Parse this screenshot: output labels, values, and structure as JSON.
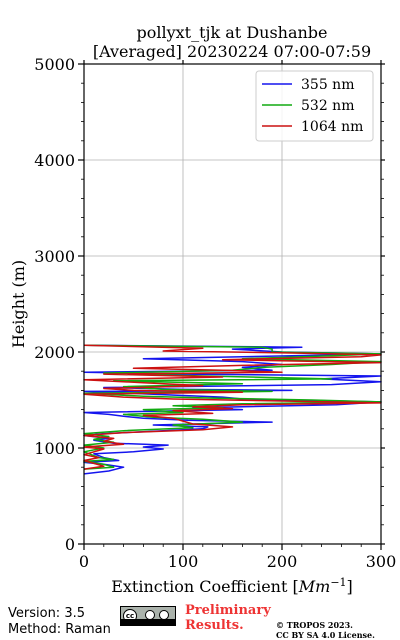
{
  "chart_data": {
    "type": "line",
    "title_line1": "pollyxt_tjk at Dushanbe",
    "title_line2": "[Averaged] 20230224 07:00-07:59",
    "xlabel": "Extinction Coefficient [",
    "xlabel_unit": "Mm",
    "xlabel_exp": "−1",
    "xlabel_end": "]",
    "ylabel": "Height (m)",
    "xlim": [
      0,
      300
    ],
    "ylim": [
      0,
      5000
    ],
    "xticks": [
      "0",
      "100",
      "200",
      "300"
    ],
    "yticks": [
      "0",
      "1000",
      "2000",
      "3000",
      "4000",
      "5000"
    ],
    "xtick_values": [
      0,
      100,
      200,
      300
    ],
    "ytick_values": [
      0,
      1000,
      2000,
      3000,
      4000,
      5000
    ],
    "grid": true,
    "legend_position": "top-right",
    "series": [
      {
        "name": "355 nm",
        "color": "#1515ee",
        "points": [
          [
            0,
            730
          ],
          [
            25,
            760
          ],
          [
            40,
            800
          ],
          [
            20,
            830
          ],
          [
            0,
            850
          ],
          [
            35,
            870
          ],
          [
            20,
            900
          ],
          [
            10,
            940
          ],
          [
            50,
            960
          ],
          [
            80,
            990
          ],
          [
            60,
            1010
          ],
          [
            85,
            1030
          ],
          [
            30,
            1050
          ],
          [
            10,
            1080
          ],
          [
            25,
            1100
          ],
          [
            0,
            1130
          ],
          [
            20,
            1150
          ],
          [
            60,
            1170
          ],
          [
            120,
            1200
          ],
          [
            125,
            1220
          ],
          [
            70,
            1240
          ],
          [
            190,
            1270
          ],
          [
            105,
            1290
          ],
          [
            60,
            1310
          ],
          [
            40,
            1330
          ],
          [
            25,
            1350
          ],
          [
            0,
            1370
          ],
          [
            160,
            1400
          ],
          [
            110,
            1420
          ],
          [
            255,
            1450
          ],
          [
            300,
            1480
          ],
          [
            160,
            1510
          ],
          [
            140,
            1530
          ],
          [
            70,
            1560
          ],
          [
            0,
            1590
          ],
          [
            210,
            1600
          ],
          [
            100,
            1610
          ],
          [
            20,
            1630
          ],
          [
            250,
            1660
          ],
          [
            300,
            1690
          ],
          [
            240,
            1720
          ],
          [
            300,
            1750
          ],
          [
            100,
            1770
          ],
          [
            0,
            1790
          ],
          [
            190,
            1810
          ],
          [
            160,
            1840
          ],
          [
            200,
            1870
          ],
          [
            160,
            1900
          ],
          [
            60,
            1930
          ],
          [
            210,
            1960
          ],
          [
            300,
            1980
          ],
          [
            200,
            2000
          ],
          [
            150,
            2030
          ],
          [
            220,
            2050
          ],
          [
            0,
            2070
          ]
        ]
      },
      {
        "name": "532 nm",
        "color": "#11aa11",
        "points": [
          [
            0,
            780
          ],
          [
            30,
            800
          ],
          [
            20,
            830
          ],
          [
            0,
            860
          ],
          [
            30,
            880
          ],
          [
            15,
            900
          ],
          [
            0,
            960
          ],
          [
            20,
            1000
          ],
          [
            0,
            1030
          ],
          [
            30,
            1060
          ],
          [
            10,
            1090
          ],
          [
            25,
            1120
          ],
          [
            0,
            1150
          ],
          [
            40,
            1180
          ],
          [
            110,
            1210
          ],
          [
            90,
            1240
          ],
          [
            160,
            1270
          ],
          [
            120,
            1300
          ],
          [
            70,
            1320
          ],
          [
            40,
            1350
          ],
          [
            100,
            1370
          ],
          [
            60,
            1400
          ],
          [
            140,
            1420
          ],
          [
            90,
            1440
          ],
          [
            160,
            1460
          ],
          [
            300,
            1480
          ],
          [
            230,
            1500
          ],
          [
            130,
            1520
          ],
          [
            60,
            1540
          ],
          [
            0,
            1570
          ],
          [
            190,
            1590
          ],
          [
            80,
            1610
          ],
          [
            40,
            1640
          ],
          [
            160,
            1670
          ],
          [
            30,
            1700
          ],
          [
            250,
            1720
          ],
          [
            120,
            1750
          ],
          [
            20,
            1780
          ],
          [
            150,
            1810
          ],
          [
            180,
            1840
          ],
          [
            250,
            1870
          ],
          [
            300,
            1900
          ],
          [
            160,
            1930
          ],
          [
            250,
            1960
          ],
          [
            300,
            1980
          ],
          [
            190,
            2000
          ],
          [
            190,
            2030
          ],
          [
            180,
            2050
          ],
          [
            0,
            2070
          ]
        ]
      },
      {
        "name": "1064 nm",
        "color": "#cc1111",
        "points": [
          [
            0,
            780
          ],
          [
            20,
            810
          ],
          [
            10,
            840
          ],
          [
            0,
            870
          ],
          [
            15,
            900
          ],
          [
            0,
            930
          ],
          [
            20,
            990
          ],
          [
            0,
            1010
          ],
          [
            40,
            1040
          ],
          [
            20,
            1070
          ],
          [
            30,
            1100
          ],
          [
            0,
            1130
          ],
          [
            40,
            1160
          ],
          [
            120,
            1190
          ],
          [
            150,
            1220
          ],
          [
            110,
            1250
          ],
          [
            100,
            1280
          ],
          [
            90,
            1310
          ],
          [
            60,
            1340
          ],
          [
            130,
            1360
          ],
          [
            90,
            1390
          ],
          [
            150,
            1410
          ],
          [
            110,
            1430
          ],
          [
            160,
            1450
          ],
          [
            300,
            1470
          ],
          [
            200,
            1490
          ],
          [
            90,
            1510
          ],
          [
            40,
            1530
          ],
          [
            0,
            1560
          ],
          [
            160,
            1580
          ],
          [
            50,
            1600
          ],
          [
            20,
            1620
          ],
          [
            120,
            1650
          ],
          [
            60,
            1680
          ],
          [
            0,
            1710
          ],
          [
            140,
            1740
          ],
          [
            20,
            1770
          ],
          [
            200,
            1790
          ],
          [
            140,
            1810
          ],
          [
            50,
            1830
          ],
          [
            160,
            1860
          ],
          [
            300,
            1890
          ],
          [
            140,
            1920
          ],
          [
            280,
            1950
          ],
          [
            300,
            1970
          ],
          [
            210,
            1990
          ],
          [
            80,
            2010
          ],
          [
            120,
            2040
          ],
          [
            0,
            2070
          ]
        ]
      }
    ]
  },
  "footer": {
    "version": "Version: 3.5",
    "method": "Method: Raman",
    "preliminary_line1": "Preliminary",
    "preliminary_line2": "Results.",
    "copyright_line1": "© TROPOS 2023.",
    "copyright_line2": "CC BY SA 4.0 License.",
    "license_badge_text": "cc"
  }
}
